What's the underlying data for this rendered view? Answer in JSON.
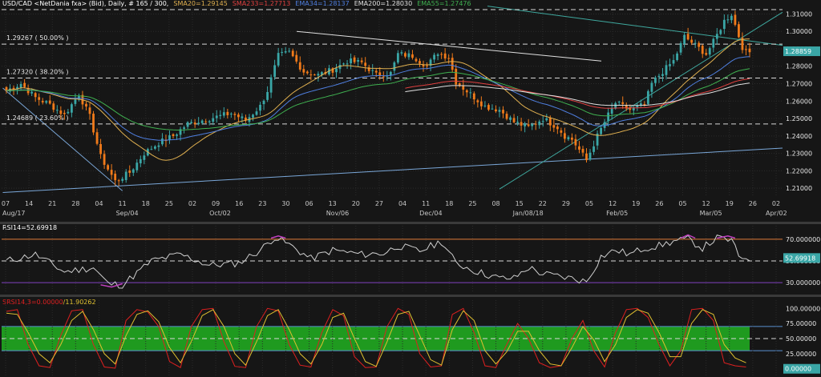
{
  "header": {
    "symbol": "USD/CAD <NetDania fxa> (Bid), Daily, # 165 / 300,",
    "indicators": [
      {
        "label": "SMA20=1.29145",
        "color": "#e0b050"
      },
      {
        "label": "SMA233=1.27713",
        "color": "#e04040"
      },
      {
        "label": "EMA34=1.28137",
        "color": "#4f7fe0"
      },
      {
        "label": "EMA200=1.28030",
        "color": "#e0e0e0"
      },
      {
        "label": "EMA55=1.27476",
        "color": "#3fb050"
      }
    ]
  },
  "colors": {
    "bull": "#3aa6a6",
    "bear": "#f07a1a",
    "price_label_bg": "#3aa6a6"
  },
  "main_chart": {
    "price_axis": [
      "1.31000",
      "1.30000",
      "1.29000",
      "1.28000",
      "1.27000",
      "1.26000",
      "1.25000",
      "1.24000",
      "1.23000",
      "1.22000",
      "1.21000"
    ],
    "ylim": [
      1.205,
      1.3125
    ],
    "current_price": "1.28859",
    "fib_levels": [
      {
        "label": "1.29267 ( 50.00% )",
        "price": 1.29267
      },
      {
        "label": "1.27320 ( 38.20% )",
        "price": 1.2732
      },
      {
        "label": "1.24689 ( 23.60% )",
        "price": 1.24689
      }
    ],
    "date_ticks": [
      "07",
      "14",
      "21",
      "28",
      "04",
      "11",
      "18",
      "25",
      "02",
      "09",
      "16",
      "23",
      "30",
      "06",
      "13",
      "20",
      "27",
      "04",
      "11",
      "18",
      "25",
      "08",
      "15",
      "22",
      "29",
      "05",
      "12",
      "19",
      "26",
      "05",
      "12",
      "19",
      "26",
      "02"
    ],
    "month_labels": [
      "Aug/17",
      "Sep/04",
      "Oct/02",
      "Nov/06",
      "Dec/04",
      "Jan/08/18",
      "Feb/05",
      "Mar/05",
      "Apr/02"
    ]
  },
  "chart_data": [
    {
      "type": "candlestick",
      "title": "USD/CAD <NetDania fxa> (Bid), Daily",
      "ylim": [
        1.205,
        1.3125
      ],
      "current_price": 1.28859,
      "close_path_points": [
        [
          0,
          1.266
        ],
        [
          4,
          1.27
        ],
        [
          8,
          1.262
        ],
        [
          12,
          1.258
        ],
        [
          16,
          1.252
        ],
        [
          20,
          1.264
        ],
        [
          23,
          1.251
        ],
        [
          26,
          1.228
        ],
        [
          30,
          1.214
        ],
        [
          34,
          1.219
        ],
        [
          38,
          1.23
        ],
        [
          42,
          1.236
        ],
        [
          46,
          1.24
        ],
        [
          50,
          1.247
        ],
        [
          54,
          1.249
        ],
        [
          58,
          1.251
        ],
        [
          62,
          1.253
        ],
        [
          66,
          1.249
        ],
        [
          70,
          1.257
        ],
        [
          72,
          1.266
        ],
        [
          75,
          1.286
        ],
        [
          78,
          1.288
        ],
        [
          82,
          1.277
        ],
        [
          86,
          1.275
        ],
        [
          90,
          1.278
        ],
        [
          94,
          1.283
        ],
        [
          98,
          1.282
        ],
        [
          102,
          1.275
        ],
        [
          106,
          1.276
        ],
        [
          108,
          1.287
        ],
        [
          112,
          1.286
        ],
        [
          116,
          1.28
        ],
        [
          119,
          1.288
        ],
        [
          122,
          1.285
        ],
        [
          124,
          1.271
        ],
        [
          128,
          1.264
        ],
        [
          132,
          1.257
        ],
        [
          136,
          1.255
        ],
        [
          140,
          1.248
        ],
        [
          144,
          1.245
        ],
        [
          148,
          1.25
        ],
        [
          152,
          1.245
        ],
        [
          154,
          1.24
        ],
        [
          156,
          1.238
        ],
        [
          158,
          1.232
        ],
        [
          160,
          1.226
        ],
        [
          163,
          1.24
        ],
        [
          166,
          1.252
        ],
        [
          168,
          1.259
        ],
        [
          172,
          1.255
        ],
        [
          176,
          1.258
        ],
        [
          178,
          1.27
        ],
        [
          181,
          1.277
        ],
        [
          184,
          1.283
        ],
        [
          187,
          1.297
        ],
        [
          190,
          1.292
        ],
        [
          193,
          1.287
        ],
        [
          195,
          1.294
        ],
        [
          198,
          1.306
        ],
        [
          200,
          1.31
        ],
        [
          203,
          1.291
        ],
        [
          204,
          1.288
        ]
      ]
    },
    {
      "type": "line",
      "name": "RSI14",
      "label": "RSI14=52.69918",
      "ylim": [
        22,
        78
      ],
      "levels": [
        70,
        30
      ],
      "current": 52.69918,
      "axis": [
        "70.000000",
        "50.000000",
        "30.000000"
      ],
      "points": [
        [
          0,
          50
        ],
        [
          8,
          56
        ],
        [
          16,
          40
        ],
        [
          24,
          44
        ],
        [
          28,
          29
        ],
        [
          32,
          28
        ],
        [
          40,
          50
        ],
        [
          48,
          56
        ],
        [
          56,
          46
        ],
        [
          64,
          48
        ],
        [
          70,
          60
        ],
        [
          74,
          72
        ],
        [
          78,
          65
        ],
        [
          84,
          52
        ],
        [
          90,
          60
        ],
        [
          98,
          56
        ],
        [
          104,
          57
        ],
        [
          108,
          64
        ],
        [
          114,
          59
        ],
        [
          120,
          68
        ],
        [
          124,
          48
        ],
        [
          130,
          40
        ],
        [
          136,
          34
        ],
        [
          140,
          34
        ],
        [
          144,
          44
        ],
        [
          148,
          38
        ],
        [
          152,
          36
        ],
        [
          156,
          34
        ],
        [
          160,
          31
        ],
        [
          164,
          54
        ],
        [
          168,
          60
        ],
        [
          172,
          56
        ],
        [
          176,
          62
        ],
        [
          180,
          64
        ],
        [
          184,
          68
        ],
        [
          188,
          70
        ],
        [
          192,
          62
        ],
        [
          196,
          71
        ],
        [
          200,
          69
        ],
        [
          202,
          54
        ],
        [
          205,
          53
        ]
      ]
    },
    {
      "type": "line",
      "name": "SRSI",
      "label": "SRSI14,3=0.00000",
      "label_value": "11.90262",
      "ylim": [
        -3,
        103
      ],
      "band": [
        30,
        70
      ],
      "levels": [
        100,
        75,
        50,
        25,
        0
      ],
      "axis": [
        "100.00000",
        "75.00000",
        "50.00000",
        "25.00000",
        "0.00000"
      ],
      "series": [
        {
          "name": "red",
          "color": "#e02020",
          "points": [
            [
              0,
              95
            ],
            [
              3,
              98
            ],
            [
              6,
              40
            ],
            [
              9,
              5
            ],
            [
              12,
              2
            ],
            [
              15,
              55
            ],
            [
              18,
              96
            ],
            [
              21,
              98
            ],
            [
              24,
              40
            ],
            [
              27,
              3
            ],
            [
              30,
              1
            ],
            [
              33,
              80
            ],
            [
              36,
              98
            ],
            [
              39,
              94
            ],
            [
              42,
              70
            ],
            [
              45,
              12
            ],
            [
              48,
              2
            ],
            [
              51,
              70
            ],
            [
              54,
              98
            ],
            [
              57,
              100
            ],
            [
              60,
              45
            ],
            [
              63,
              4
            ],
            [
              66,
              2
            ],
            [
              69,
              70
            ],
            [
              72,
              100
            ],
            [
              75,
              96
            ],
            [
              78,
              40
            ],
            [
              81,
              6
            ],
            [
              84,
              3
            ],
            [
              87,
              60
            ],
            [
              90,
              98
            ],
            [
              93,
              88
            ],
            [
              96,
              20
            ],
            [
              99,
              2
            ],
            [
              102,
              3
            ],
            [
              105,
              70
            ],
            [
              108,
              100
            ],
            [
              111,
              90
            ],
            [
              114,
              25
            ],
            [
              117,
              3
            ],
            [
              120,
              5
            ],
            [
              123,
              90
            ],
            [
              126,
              100
            ],
            [
              129,
              60
            ],
            [
              132,
              5
            ],
            [
              135,
              2
            ],
            [
              138,
              40
            ],
            [
              141,
              75
            ],
            [
              144,
              50
            ],
            [
              147,
              10
            ],
            [
              150,
              2
            ],
            [
              153,
              5
            ],
            [
              156,
              50
            ],
            [
              159,
              80
            ],
            [
              162,
              30
            ],
            [
              165,
              3
            ],
            [
              168,
              60
            ],
            [
              171,
              98
            ],
            [
              174,
              100
            ],
            [
              177,
              85
            ],
            [
              180,
              40
            ],
            [
              183,
              5
            ],
            [
              186,
              30
            ],
            [
              189,
              98
            ],
            [
              192,
              100
            ],
            [
              195,
              80
            ],
            [
              198,
              10
            ],
            [
              201,
              5
            ],
            [
              204,
              3
            ]
          ]
        },
        {
          "name": "yellow",
          "color": "#e0c030",
          "points": [
            [
              0,
              92
            ],
            [
              3,
              90
            ],
            [
              6,
              60
            ],
            [
              9,
              25
            ],
            [
              12,
              10
            ],
            [
              15,
              40
            ],
            [
              18,
              80
            ],
            [
              21,
              95
            ],
            [
              24,
              65
            ],
            [
              27,
              25
            ],
            [
              30,
              8
            ],
            [
              33,
              55
            ],
            [
              36,
              90
            ],
            [
              39,
              96
            ],
            [
              42,
              78
            ],
            [
              45,
              35
            ],
            [
              48,
              10
            ],
            [
              51,
              45
            ],
            [
              54,
              88
            ],
            [
              57,
              98
            ],
            [
              60,
              70
            ],
            [
              63,
              25
            ],
            [
              66,
              6
            ],
            [
              69,
              45
            ],
            [
              72,
              88
            ],
            [
              75,
              98
            ],
            [
              78,
              65
            ],
            [
              81,
              25
            ],
            [
              84,
              8
            ],
            [
              87,
              40
            ],
            [
              90,
              85
            ],
            [
              93,
              92
            ],
            [
              96,
              50
            ],
            [
              99,
              12
            ],
            [
              102,
              4
            ],
            [
              105,
              45
            ],
            [
              108,
              90
            ],
            [
              111,
              95
            ],
            [
              114,
              55
            ],
            [
              117,
              15
            ],
            [
              120,
              6
            ],
            [
              123,
              65
            ],
            [
              126,
              96
            ],
            [
              129,
              80
            ],
            [
              132,
              30
            ],
            [
              135,
              8
            ],
            [
              138,
              28
            ],
            [
              141,
              62
            ],
            [
              144,
              62
            ],
            [
              147,
              30
            ],
            [
              150,
              8
            ],
            [
              153,
              5
            ],
            [
              156,
              35
            ],
            [
              159,
              70
            ],
            [
              162,
              48
            ],
            [
              165,
              12
            ],
            [
              168,
              40
            ],
            [
              171,
              85
            ],
            [
              174,
              98
            ],
            [
              177,
              92
            ],
            [
              180,
              60
            ],
            [
              183,
              20
            ],
            [
              186,
              20
            ],
            [
              189,
              75
            ],
            [
              192,
              98
            ],
            [
              195,
              90
            ],
            [
              198,
              40
            ],
            [
              201,
              18
            ],
            [
              204,
              10
            ]
          ]
        }
      ]
    }
  ]
}
